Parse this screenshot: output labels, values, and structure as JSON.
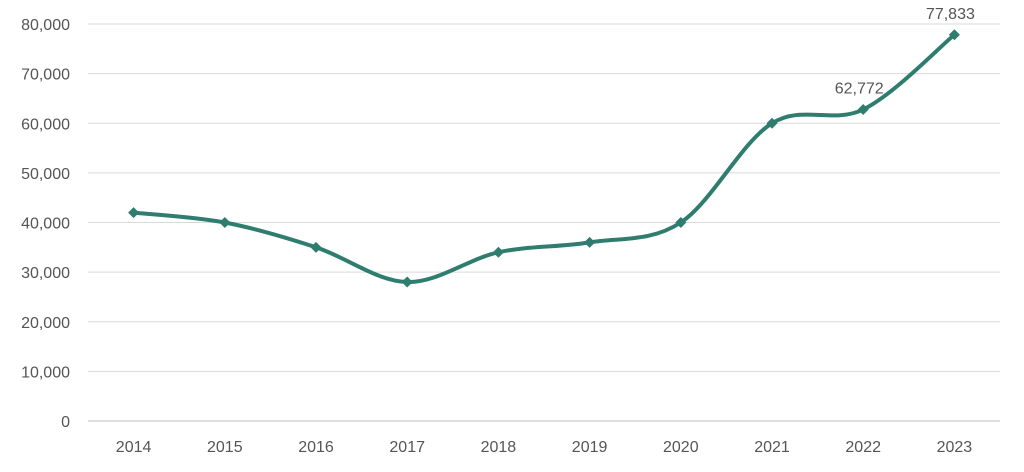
{
  "chart_data": {
    "type": "line",
    "title": "",
    "xlabel": "",
    "ylabel": "",
    "categories": [
      "2014",
      "2015",
      "2016",
      "2017",
      "2018",
      "2019",
      "2020",
      "2021",
      "2022",
      "2023"
    ],
    "series": [
      {
        "values": [
          42000,
          40000,
          35000,
          28000,
          34000,
          36000,
          40000,
          60000,
          62772,
          77833
        ],
        "color": "#2e7d6f",
        "marker": "diamond",
        "smooth": true
      }
    ],
    "ylim": [
      0,
      80000
    ],
    "yticks": [
      "0",
      "10,000",
      "20,000",
      "30,000",
      "40,000",
      "50,000",
      "60,000",
      "70,000",
      "80,000"
    ],
    "data_labels": [
      {
        "category": "2022",
        "text": "62,772"
      },
      {
        "category": "2023",
        "text": "77,833"
      }
    ],
    "grid": "horizontal",
    "legend": "none"
  }
}
